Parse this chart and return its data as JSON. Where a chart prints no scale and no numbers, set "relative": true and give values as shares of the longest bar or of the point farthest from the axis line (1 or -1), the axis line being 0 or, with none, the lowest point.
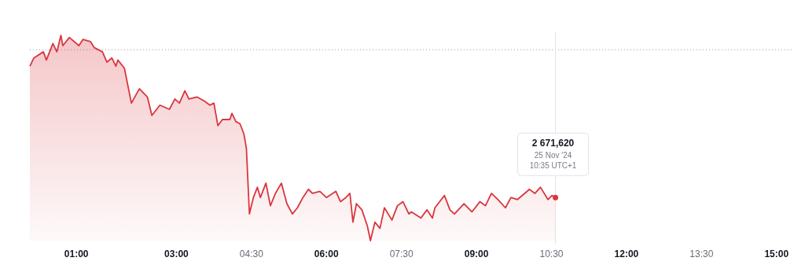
{
  "chart_data": {
    "type": "area",
    "relative": true,
    "marker": "none",
    "line_style": "solid",
    "x": [
      0.07,
      0.15,
      0.34,
      0.4,
      0.53,
      0.61,
      0.69,
      0.73,
      0.86,
      1.05,
      1.13,
      1.28,
      1.36,
      1.52,
      1.61,
      1.71,
      1.79,
      1.83,
      1.96,
      2.1,
      2.26,
      2.42,
      2.51,
      2.67,
      2.86,
      2.97,
      3.06,
      3.17,
      3.25,
      3.41,
      3.56,
      3.67,
      3.75,
      3.83,
      3.92,
      4.07,
      4.11,
      4.19,
      4.27,
      4.35,
      4.4,
      4.46,
      4.54,
      4.62,
      4.68,
      4.79,
      4.88,
      4.98,
      5.1,
      5.21,
      5.32,
      5.42,
      5.53,
      5.64,
      5.72,
      5.87,
      6.0,
      6.19,
      6.28,
      6.39,
      6.47,
      6.53,
      6.6,
      6.71,
      6.82,
      6.88,
      6.97,
      7.07,
      7.16,
      7.31,
      7.42,
      7.53,
      7.65,
      7.7,
      7.89,
      8.01,
      8.12,
      8.17,
      8.36,
      8.47,
      8.56,
      8.75,
      8.91,
      9.07,
      9.18,
      9.3,
      9.43,
      9.58,
      9.69,
      9.82,
      10.06,
      10.17,
      10.28,
      10.43,
      10.51,
      10.58
    ],
    "series": [
      {
        "color": "#d9363e",
        "values": [
          0.85,
          0.89,
          0.92,
          0.88,
          0.96,
          0.92,
          1.0,
          0.95,
          0.99,
          0.95,
          0.98,
          0.97,
          0.94,
          0.92,
          0.87,
          0.89,
          0.85,
          0.88,
          0.84,
          0.67,
          0.74,
          0.7,
          0.61,
          0.66,
          0.64,
          0.69,
          0.67,
          0.73,
          0.69,
          0.7,
          0.68,
          0.66,
          0.67,
          0.56,
          0.59,
          0.59,
          0.62,
          0.58,
          0.57,
          0.52,
          0.45,
          0.13,
          0.21,
          0.26,
          0.21,
          0.28,
          0.17,
          0.23,
          0.28,
          0.18,
          0.13,
          0.16,
          0.21,
          0.25,
          0.23,
          0.24,
          0.21,
          0.24,
          0.19,
          0.21,
          0.23,
          0.09,
          0.18,
          0.15,
          0.07,
          0.0,
          0.09,
          0.06,
          0.16,
          0.1,
          0.17,
          0.19,
          0.13,
          0.14,
          0.11,
          0.15,
          0.11,
          0.16,
          0.22,
          0.15,
          0.13,
          0.18,
          0.14,
          0.19,
          0.17,
          0.23,
          0.2,
          0.16,
          0.21,
          0.2,
          0.25,
          0.23,
          0.26,
          0.2,
          0.22,
          0.21
        ]
      }
    ],
    "xlim": [
      0.07,
      15.35
    ],
    "xticks": [
      {
        "value": 1,
        "label": "01:00"
      },
      {
        "value": 3,
        "label": "03:00"
      },
      {
        "value": 4.5,
        "label": "04:30"
      },
      {
        "value": 6,
        "label": "06:00"
      },
      {
        "value": 7.5,
        "label": "07:30"
      },
      {
        "value": 9,
        "label": "09:00"
      },
      {
        "value": 10.5,
        "label": "10:30"
      },
      {
        "value": 12,
        "label": "12:00"
      },
      {
        "value": 13.5,
        "label": "13:30"
      },
      {
        "value": 15,
        "label": "15:00"
      }
    ],
    "ref_lines": [
      {
        "axis": "y",
        "value": 0.93,
        "line_style": "dotted",
        "color": "#9598a1"
      },
      {
        "axis": "x",
        "value": 10.58,
        "line_style": "solid",
        "color": "#e0e3eb"
      }
    ],
    "annotations": [
      "2 671,620",
      "25 Nov '24",
      "10:35 UTC+1"
    ]
  }
}
